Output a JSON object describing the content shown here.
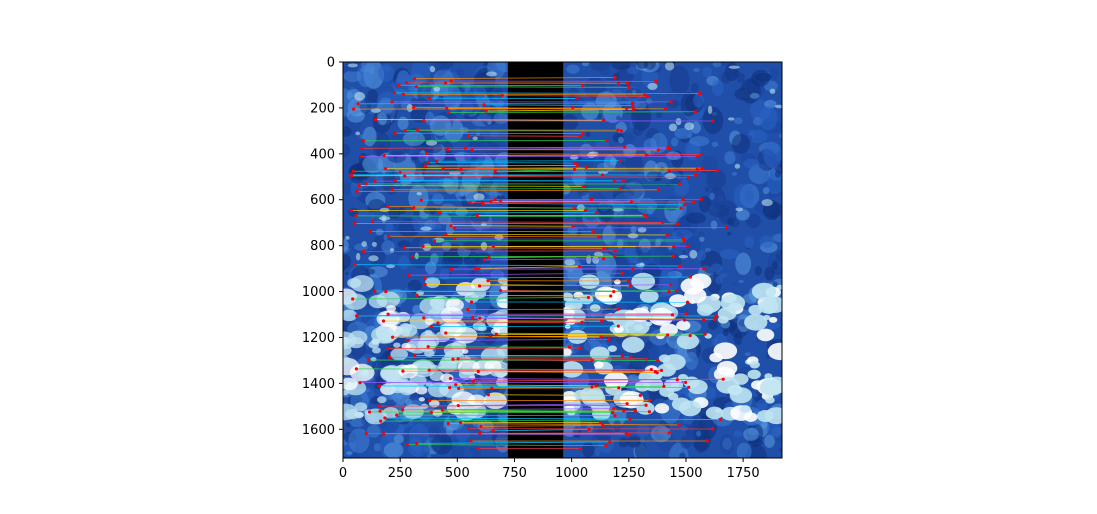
{
  "chart_data": {
    "type": "image-matches",
    "title": "",
    "xlabel": "",
    "ylabel": "",
    "xlim": [
      0,
      1920
    ],
    "ylim": [
      1725,
      0
    ],
    "x_ticks": [
      0,
      250,
      500,
      750,
      1000,
      1250,
      1500,
      1750
    ],
    "y_ticks": [
      0,
      200,
      400,
      600,
      800,
      1000,
      1200,
      1400,
      1600
    ],
    "x_tick_labels": [
      "0",
      "250",
      "500",
      "750",
      "1000",
      "1250",
      "1500",
      "1750"
    ],
    "y_tick_labels": [
      "0",
      "200",
      "400",
      "600",
      "800",
      "1000",
      "1200",
      "1400",
      "1600"
    ],
    "left_image_x_range": [
      0,
      720
    ],
    "gap_x_range": [
      720,
      965
    ],
    "right_image_x_range": [
      965,
      1920
    ],
    "colors": {
      "image_base": "#1f4fa8",
      "image_light": "#bfe4f2",
      "gap": "#000000",
      "keypoint": "#ff0000",
      "match_lines": [
        "#ff3b3b",
        "#2bd64a",
        "#ff8a00",
        "#9b59ff",
        "#00c8ff",
        "#ffd400"
      ]
    },
    "match_rows_sample": [
      90,
      110,
      140,
      170,
      190,
      250,
      320,
      345,
      380,
      410,
      430,
      460,
      500,
      530,
      560,
      600,
      620,
      650,
      700,
      780,
      850,
      900,
      940,
      970,
      1000,
      1030,
      1080,
      1120,
      1150,
      1200,
      1250,
      1300,
      1350,
      1380,
      1420,
      1450,
      1500,
      1540,
      1580,
      1620,
      1660
    ]
  }
}
